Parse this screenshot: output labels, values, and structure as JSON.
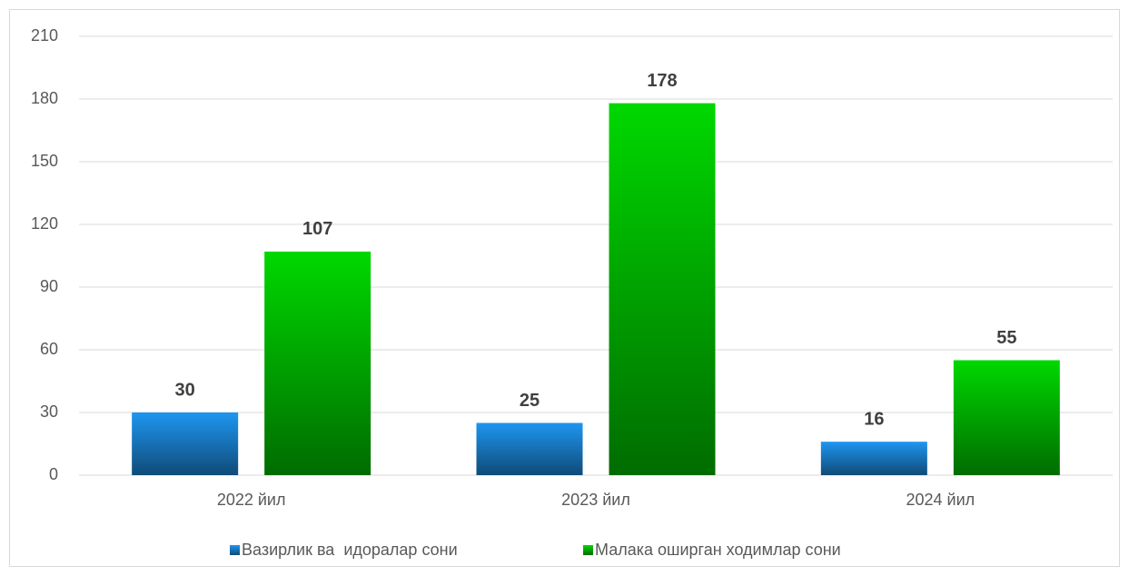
{
  "chart_data": {
    "type": "bar",
    "categories": [
      "2022 йил",
      "2023 йил",
      "2024 йил"
    ],
    "series": [
      {
        "name": "Вазирлик ва  идоралар сони",
        "color": "#1e96f0",
        "values": [
          30,
          25,
          16
        ]
      },
      {
        "name": "Малака оширган ходимлар сони",
        "color": "#00d800",
        "values": [
          107,
          178,
          55
        ]
      }
    ],
    "ylim": [
      0,
      210
    ],
    "yticks": [
      0,
      30,
      60,
      90,
      120,
      150,
      180,
      210
    ],
    "grid": true,
    "legend": "bottom"
  }
}
